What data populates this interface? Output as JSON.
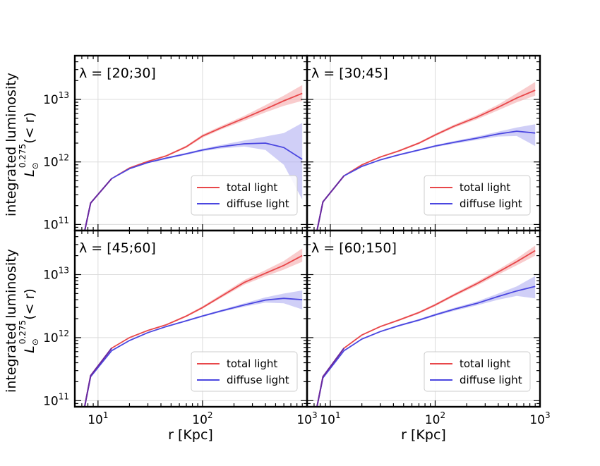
{
  "figure": {
    "ylabel_main": "integrated luminosity",
    "ylabel_sub_base": "L",
    "ylabel_sub_subscript": "⊙",
    "ylabel_sub_superscript": "0.275",
    "ylabel_sub_tail": "(< r)",
    "xlabel": "r [Kpc]"
  },
  "colors": {
    "total": "#e8474a",
    "total_band": "#f4a3a4",
    "diffuse": "#4a46e0",
    "diffuse_band": "#a9a7f1",
    "overlap": "#6a2aa0"
  },
  "chart_data": [
    {
      "type": "line",
      "title": "λ = [20;30]",
      "xscale": "log",
      "yscale": "log",
      "xlim": [
        6,
        1000
      ],
      "ylim": [
        80000000000,
        50000000000000
      ],
      "xticks": [
        {
          "v": 10,
          "base": "10",
          "exp": "1"
        },
        {
          "v": 100,
          "base": "10",
          "exp": "2"
        },
        {
          "v": 1000,
          "base": "10",
          "exp": "3"
        }
      ],
      "yticks": [
        {
          "v": 100000000000,
          "base": "10",
          "exp": "11"
        },
        {
          "v": 1000000000000,
          "base": "10",
          "exp": "12"
        },
        {
          "v": 10000000000000,
          "base": "10",
          "exp": "13"
        }
      ],
      "legend": {
        "loc": "lower right",
        "entries": [
          "total light",
          "diffuse light"
        ]
      },
      "series": [
        {
          "name": "total light",
          "x": [
            7.2,
            8.5,
            13.5,
            20,
            30,
            45,
            70,
            100,
            150,
            250,
            400,
            600,
            900
          ],
          "y": [
            60000000000,
            220000000000,
            540000000000,
            800000000000,
            1020000000000,
            1250000000000,
            1750000000000,
            2600000000000,
            3500000000000,
            5000000000000,
            7000000000000,
            9500000000000,
            12500000000000
          ],
          "lo": [
            60000000000,
            220000000000,
            540000000000,
            790000000000,
            1000000000000,
            1220000000000,
            1680000000000,
            2450000000000,
            3300000000000,
            4550000000000,
            6200000000000,
            7900000000000,
            9500000000000
          ],
          "hi": [
            60000000000,
            220000000000,
            540000000000,
            810000000000,
            1040000000000,
            1290000000000,
            1830000000000,
            2750000000000,
            3750000000000,
            5450000000000,
            8100000000000,
            11500000000000,
            17000000000000
          ]
        },
        {
          "name": "diffuse light",
          "x": [
            7.2,
            8.5,
            13.5,
            20,
            30,
            45,
            70,
            100,
            150,
            250,
            400,
            600,
            900
          ],
          "y": [
            60000000000,
            220000000000,
            540000000000,
            780000000000,
            980000000000,
            1150000000000,
            1350000000000,
            1550000000000,
            1750000000000,
            1950000000000,
            2000000000000,
            1700000000000,
            1100000000000
          ],
          "lo": [
            60000000000,
            220000000000,
            540000000000,
            770000000000,
            960000000000,
            1110000000000,
            1300000000000,
            1480000000000,
            1640000000000,
            1760000000000,
            1550000000000,
            900000000000,
            250000000000
          ],
          "hi": [
            60000000000,
            220000000000,
            540000000000,
            790000000000,
            1000000000000,
            1190000000000,
            1400000000000,
            1620000000000,
            1870000000000,
            2200000000000,
            2550000000000,
            2900000000000,
            4200000000000
          ]
        }
      ]
    },
    {
      "type": "line",
      "title": "λ = [30;45]",
      "xscale": "log",
      "yscale": "log",
      "xlim": [
        6,
        1000
      ],
      "ylim": [
        80000000000,
        50000000000000
      ],
      "xticks": [
        {
          "v": 10,
          "base": "10",
          "exp": "1"
        },
        {
          "v": 100,
          "base": "10",
          "exp": "2"
        },
        {
          "v": 1000,
          "base": "10",
          "exp": "3"
        }
      ],
      "yticks": [
        {
          "v": 100000000000,
          "base": "10",
          "exp": "11"
        },
        {
          "v": 1000000000000,
          "base": "10",
          "exp": "12"
        },
        {
          "v": 10000000000000,
          "base": "10",
          "exp": "13"
        }
      ],
      "legend": {
        "loc": "lower right",
        "entries": [
          "total light",
          "diffuse light"
        ]
      },
      "series": [
        {
          "name": "total light",
          "x": [
            7.2,
            8.5,
            13.5,
            20,
            30,
            45,
            70,
            100,
            150,
            250,
            400,
            600,
            900
          ],
          "y": [
            60000000000,
            230000000000,
            600000000000,
            900000000000,
            1200000000000,
            1500000000000,
            2000000000000,
            2700000000000,
            3700000000000,
            5200000000000,
            7500000000000,
            10500000000000,
            14000000000000
          ],
          "lo": [
            60000000000,
            230000000000,
            590000000000,
            880000000000,
            1170000000000,
            1460000000000,
            1930000000000,
            2580000000000,
            3500000000000,
            4800000000000,
            6700000000000,
            9000000000000,
            11500000000000
          ],
          "hi": [
            60000000000,
            230000000000,
            610000000000,
            920000000000,
            1230000000000,
            1550000000000,
            2080000000000,
            2830000000000,
            3920000000000,
            5600000000000,
            8300000000000,
            12500000000000,
            19000000000000
          ]
        },
        {
          "name": "diffuse light",
          "x": [
            7.2,
            8.5,
            13.5,
            20,
            30,
            45,
            70,
            100,
            150,
            250,
            400,
            600,
            900
          ],
          "y": [
            60000000000,
            230000000000,
            600000000000,
            850000000000,
            1080000000000,
            1300000000000,
            1550000000000,
            1800000000000,
            2050000000000,
            2400000000000,
            2800000000000,
            3100000000000,
            2900000000000
          ],
          "lo": [
            60000000000,
            230000000000,
            590000000000,
            840000000000,
            1060000000000,
            1260000000000,
            1500000000000,
            1730000000000,
            1950000000000,
            2250000000000,
            2550000000000,
            2600000000000,
            1800000000000
          ],
          "hi": [
            60000000000,
            230000000000,
            610000000000,
            860000000000,
            1100000000000,
            1340000000000,
            1600000000000,
            1870000000000,
            2150000000000,
            2550000000000,
            3050000000000,
            3550000000000,
            4000000000000
          ]
        }
      ]
    },
    {
      "type": "line",
      "title": "λ = [45;60]",
      "xscale": "log",
      "yscale": "log",
      "xlim": [
        6,
        1000
      ],
      "ylim": [
        80000000000,
        50000000000000
      ],
      "xticks": [
        {
          "v": 10,
          "base": "10",
          "exp": "1"
        },
        {
          "v": 100,
          "base": "10",
          "exp": "2"
        },
        {
          "v": 1000,
          "base": "10",
          "exp": "3"
        }
      ],
      "yticks": [
        {
          "v": 100000000000,
          "base": "10",
          "exp": "11"
        },
        {
          "v": 1000000000000,
          "base": "10",
          "exp": "12"
        },
        {
          "v": 10000000000000,
          "base": "10",
          "exp": "13"
        }
      ],
      "legend": {
        "loc": "lower right",
        "entries": [
          "total light",
          "diffuse light"
        ]
      },
      "series": [
        {
          "name": "total light",
          "x": [
            7.2,
            8.5,
            13.5,
            20,
            30,
            45,
            70,
            100,
            150,
            250,
            400,
            600,
            900
          ],
          "y": [
            60000000000,
            250000000000,
            680000000000,
            1000000000000,
            1300000000000,
            1600000000000,
            2200000000000,
            3000000000000,
            4500000000000,
            7500000000000,
            10500000000000,
            14000000000000,
            20000000000000
          ],
          "lo": [
            60000000000,
            250000000000,
            670000000000,
            980000000000,
            1270000000000,
            1560000000000,
            2130000000000,
            2880000000000,
            4250000000000,
            6900000000000,
            9400000000000,
            12000000000000,
            16000000000000
          ],
          "hi": [
            60000000000,
            250000000000,
            690000000000,
            1020000000000,
            1330000000000,
            1650000000000,
            2280000000000,
            3150000000000,
            4800000000000,
            8200000000000,
            11800000000000,
            16500000000000,
            26000000000000
          ]
        },
        {
          "name": "diffuse light",
          "x": [
            7.2,
            8.5,
            13.5,
            20,
            30,
            45,
            70,
            100,
            150,
            250,
            400,
            600,
            900
          ],
          "y": [
            60000000000,
            240000000000,
            620000000000,
            900000000000,
            1200000000000,
            1500000000000,
            1850000000000,
            2200000000000,
            2650000000000,
            3300000000000,
            3950000000000,
            4200000000000,
            4000000000000
          ],
          "lo": [
            60000000000,
            240000000000,
            610000000000,
            890000000000,
            1180000000000,
            1470000000000,
            1800000000000,
            2130000000000,
            2550000000000,
            3100000000000,
            3600000000000,
            3500000000000,
            2800000000000
          ],
          "hi": [
            60000000000,
            240000000000,
            630000000000,
            910000000000,
            1220000000000,
            1530000000000,
            1900000000000,
            2270000000000,
            2750000000000,
            3500000000000,
            4350000000000,
            5000000000000,
            5600000000000
          ]
        }
      ]
    },
    {
      "type": "line",
      "title": "λ = [60;150]",
      "xscale": "log",
      "yscale": "log",
      "xlim": [
        6,
        1000
      ],
      "ylim": [
        80000000000,
        50000000000000
      ],
      "xticks": [
        {
          "v": 10,
          "base": "10",
          "exp": "1"
        },
        {
          "v": 100,
          "base": "10",
          "exp": "2"
        },
        {
          "v": 1000,
          "base": "10",
          "exp": "3"
        }
      ],
      "yticks": [
        {
          "v": 100000000000,
          "base": "10",
          "exp": "11"
        },
        {
          "v": 1000000000000,
          "base": "10",
          "exp": "12"
        },
        {
          "v": 10000000000000,
          "base": "10",
          "exp": "13"
        }
      ],
      "legend": {
        "loc": "lower right",
        "entries": [
          "total light",
          "diffuse light"
        ]
      },
      "series": [
        {
          "name": "total light",
          "x": [
            7.2,
            8.5,
            13.5,
            20,
            30,
            45,
            70,
            100,
            150,
            250,
            400,
            600,
            900
          ],
          "y": [
            60000000000,
            240000000000,
            680000000000,
            1100000000000,
            1500000000000,
            1900000000000,
            2500000000000,
            3300000000000,
            4700000000000,
            7200000000000,
            11000000000000,
            16000000000000,
            24000000000000
          ],
          "lo": [
            60000000000,
            240000000000,
            670000000000,
            1080000000000,
            1460000000000,
            1840000000000,
            2400000000000,
            3150000000000,
            4450000000000,
            6700000000000,
            10000000000000,
            14000000000000,
            20000000000000
          ],
          "hi": [
            60000000000,
            240000000000,
            690000000000,
            1120000000000,
            1540000000000,
            1960000000000,
            2600000000000,
            3450000000000,
            4950000000000,
            7700000000000,
            12000000000000,
            18000000000000,
            29000000000000
          ]
        },
        {
          "name": "diffuse light",
          "x": [
            7.2,
            8.5,
            13.5,
            20,
            30,
            45,
            70,
            100,
            150,
            250,
            400,
            600,
            900
          ],
          "y": [
            60000000000,
            230000000000,
            620000000000,
            950000000000,
            1250000000000,
            1550000000000,
            1900000000000,
            2300000000000,
            2800000000000,
            3500000000000,
            4500000000000,
            5500000000000,
            6500000000000
          ],
          "lo": [
            60000000000,
            230000000000,
            610000000000,
            930000000000,
            1220000000000,
            1500000000000,
            1830000000000,
            2200000000000,
            2650000000000,
            3250000000000,
            4000000000000,
            4600000000000,
            4200000000000
          ],
          "hi": [
            60000000000,
            230000000000,
            630000000000,
            970000000000,
            1280000000000,
            1600000000000,
            1970000000000,
            2400000000000,
            2950000000000,
            3750000000000,
            5000000000000,
            6500000000000,
            9500000000000
          ]
        }
      ]
    }
  ]
}
